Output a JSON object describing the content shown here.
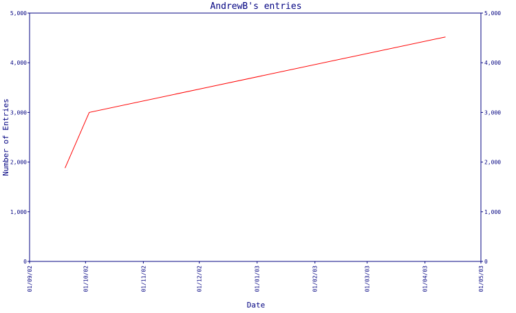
{
  "colors": {
    "axis": "#000080",
    "text": "#000080",
    "series": "#ff0000",
    "background": "#ffffff"
  },
  "chart_data": {
    "type": "line",
    "title": "AndrewB's entries",
    "xlabel": "Date",
    "ylabel": "Number of Entries",
    "x_is_date": true,
    "xlim": [
      "2002-09-01",
      "2003-05-01"
    ],
    "ylim": [
      0,
      5000
    ],
    "grid": false,
    "legend": "none",
    "y_ticks": [
      0,
      1000,
      2000,
      3000,
      4000,
      5000
    ],
    "y_tick_labels": [
      "0",
      "1,000",
      "2,000",
      "3,000",
      "4,000",
      "5,000"
    ],
    "y_axis_right": true,
    "x_ticks": [
      "2002-09-01",
      "2002-10-01",
      "2002-11-01",
      "2002-12-01",
      "2003-01-01",
      "2003-02-01",
      "2003-03-01",
      "2003-04-01",
      "2003-05-01"
    ],
    "x_tick_labels": [
      "01/09/02",
      "01/10/02",
      "01/11/02",
      "01/12/02",
      "01/01/03",
      "01/02/03",
      "01/03/03",
      "01/04/03",
      "01/05/03"
    ],
    "series": [
      {
        "x": [
          "2002-09-20",
          "2002-10-03",
          "2003-04-12"
        ],
        "y": [
          1880,
          3000,
          4520
        ]
      }
    ]
  }
}
